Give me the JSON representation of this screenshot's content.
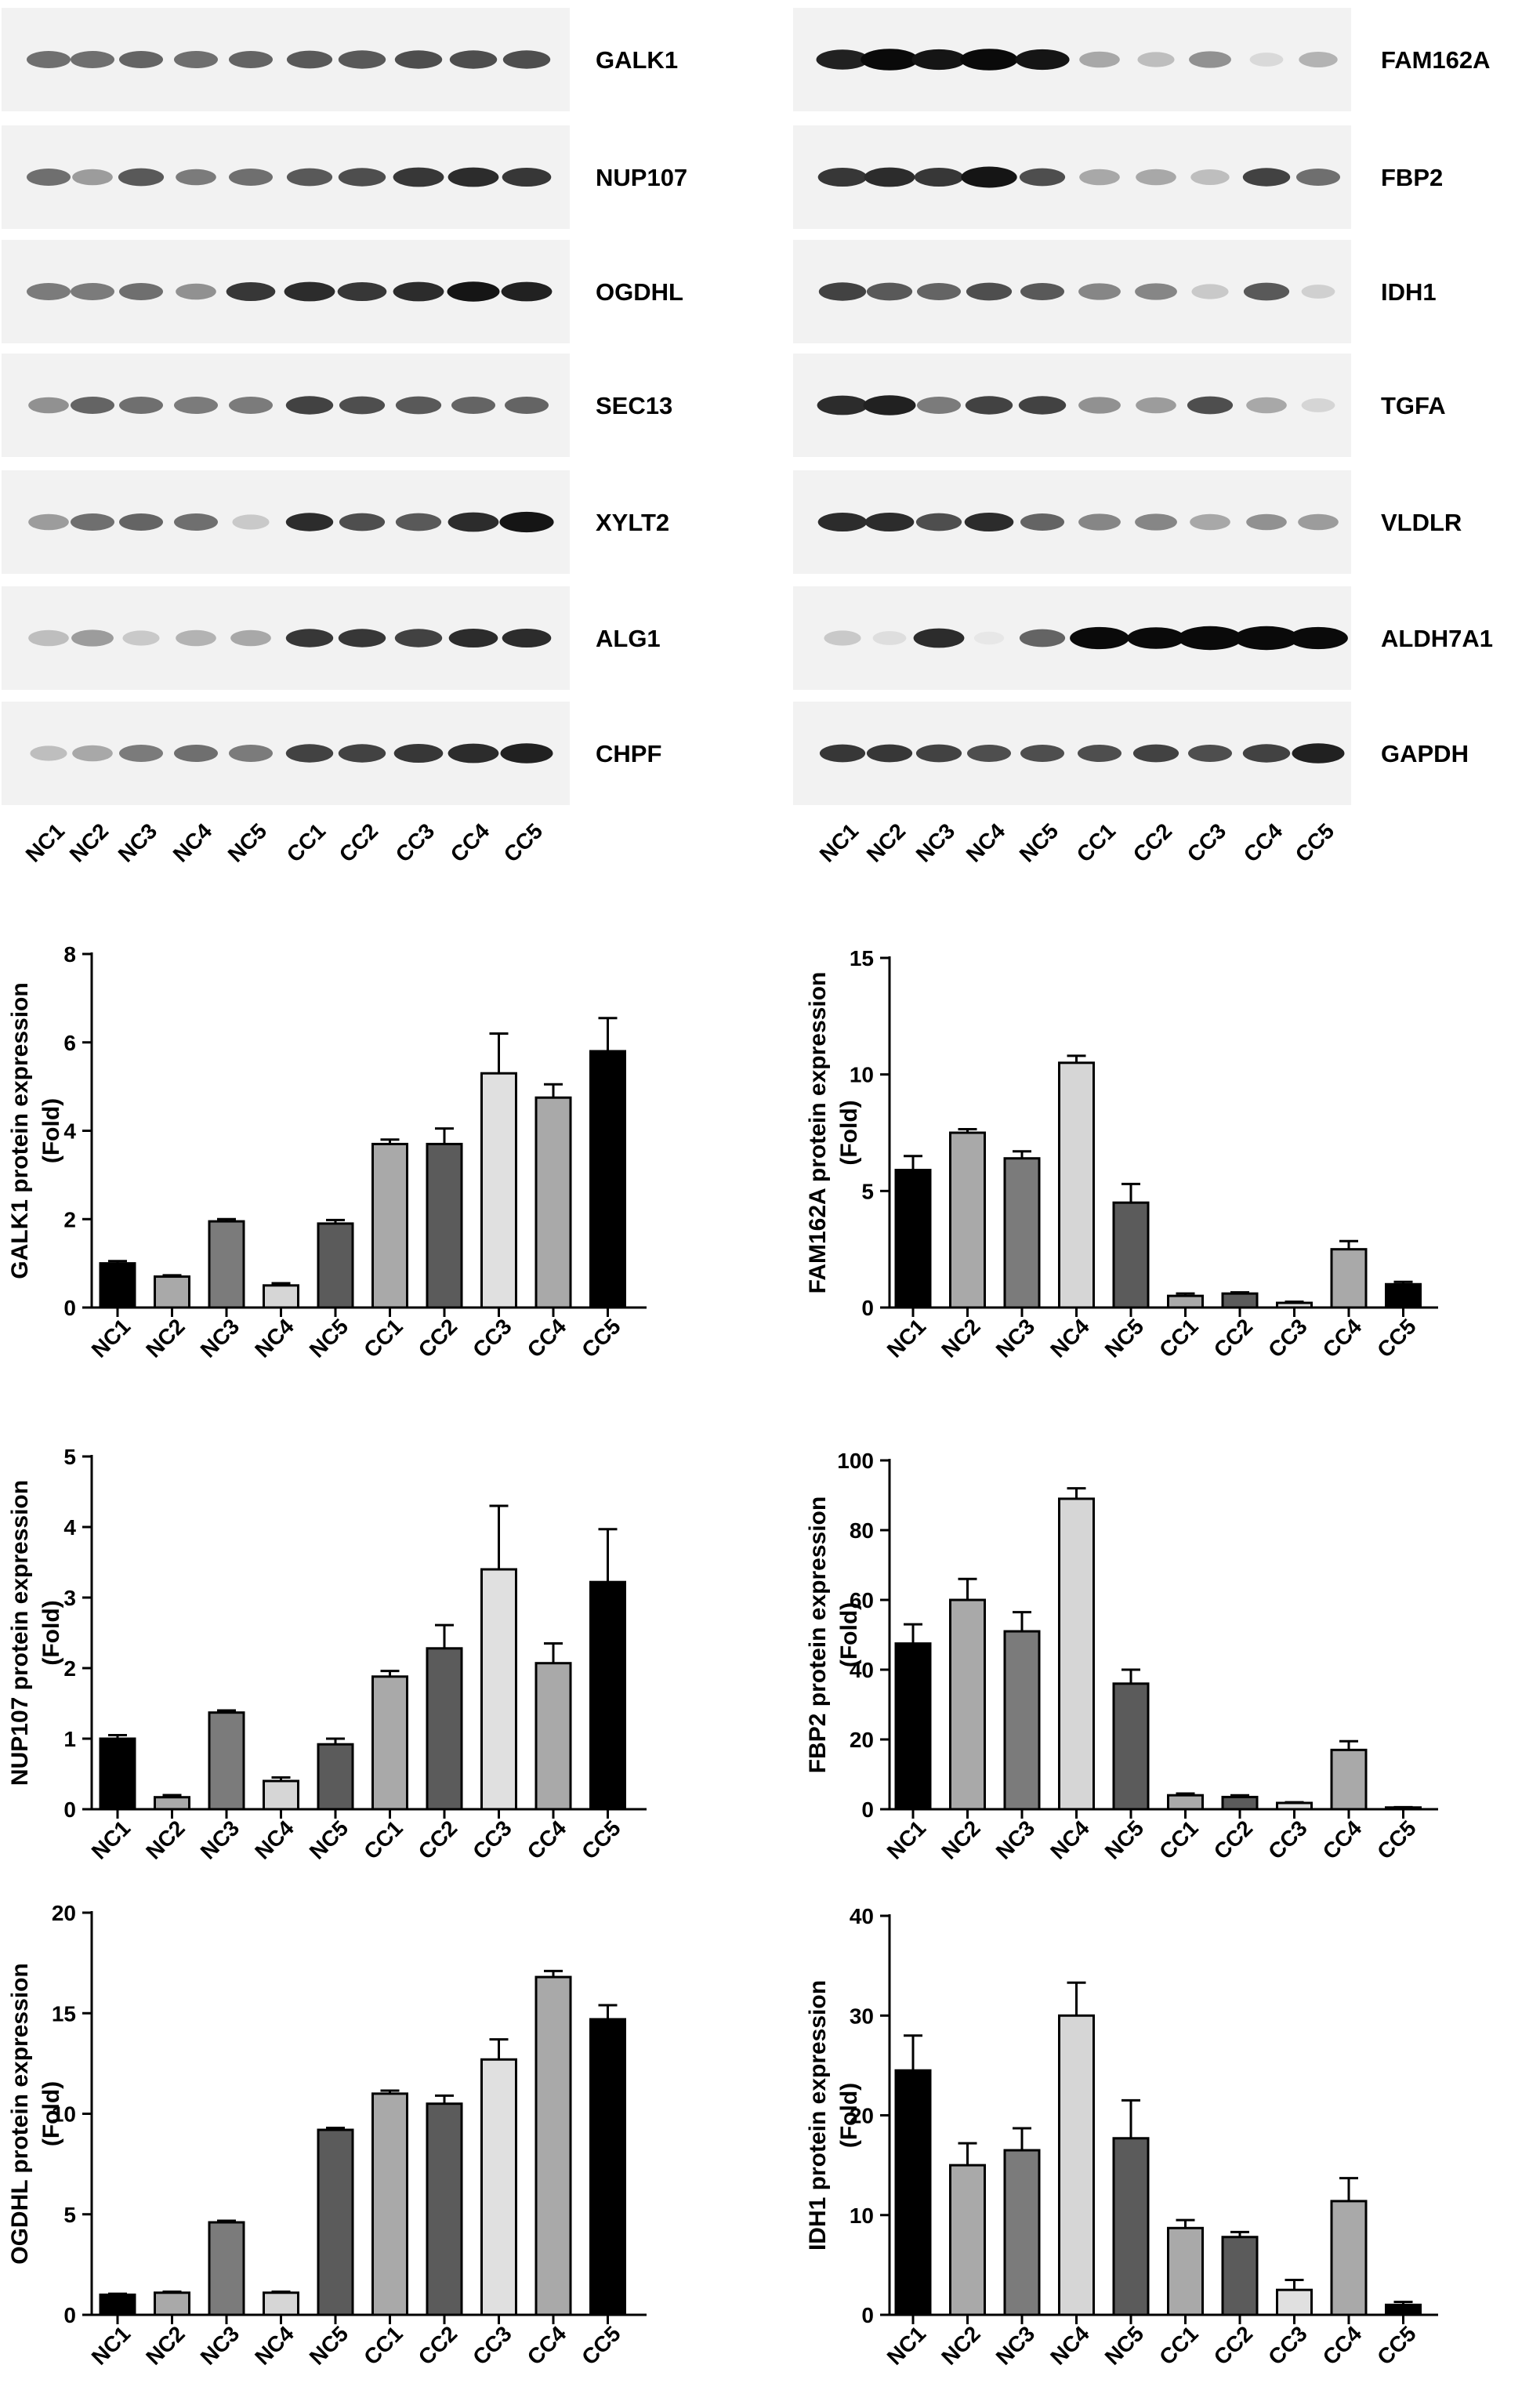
{
  "blots": {
    "lanes": [
      "NC1",
      "NC2",
      "NC3",
      "NC4",
      "NC5",
      "CC1",
      "CC2",
      "CC3",
      "CC4",
      "CC5"
    ],
    "left": [
      {
        "label": "GALK1"
      },
      {
        "label": "NUP107"
      },
      {
        "label": "OGDHL"
      },
      {
        "label": "SEC13"
      },
      {
        "label": "XYLT2"
      },
      {
        "label": "ALG1"
      },
      {
        "label": "CHPF"
      }
    ],
    "right": [
      {
        "label": "FAM162A"
      },
      {
        "label": "FBP2"
      },
      {
        "label": "IDH1"
      },
      {
        "label": "TGFA"
      },
      {
        "label": "VLDLR"
      },
      {
        "label": "ALDH7A1"
      },
      {
        "label": "GAPDH"
      }
    ]
  },
  "chart_data": [
    {
      "type": "bar",
      "ylabel": "GALK1 protein expression\n(Fold)",
      "categories": [
        "NC1",
        "NC2",
        "NC3",
        "NC4",
        "NC5",
        "CC1",
        "CC2",
        "CC3",
        "CC4",
        "CC5"
      ],
      "values": [
        1.0,
        0.7,
        1.95,
        0.5,
        1.9,
        3.7,
        3.7,
        5.3,
        4.75,
        5.8
      ],
      "errors": [
        0.05,
        0.03,
        0.05,
        0.05,
        0.08,
        0.1,
        0.35,
        0.9,
        0.3,
        0.75
      ],
      "ylim": [
        0,
        8
      ],
      "yticks": [
        0,
        2,
        4,
        6,
        8
      ]
    },
    {
      "type": "bar",
      "ylabel": "FAM162A protein expression\n(Fold)",
      "categories": [
        "NC1",
        "NC2",
        "NC3",
        "NC4",
        "NC5",
        "CC1",
        "CC2",
        "CC3",
        "CC4",
        "CC5"
      ],
      "values": [
        5.9,
        7.5,
        6.4,
        10.5,
        4.5,
        0.5,
        0.6,
        0.2,
        2.5,
        1.0
      ],
      "errors": [
        0.6,
        0.15,
        0.3,
        0.3,
        0.8,
        0.1,
        0.05,
        0.05,
        0.35,
        0.1
      ],
      "ylim": [
        0,
        15
      ],
      "yticks": [
        0,
        5,
        10,
        15
      ]
    },
    {
      "type": "bar",
      "ylabel": "NUP107 protein expression\n(Fold)",
      "categories": [
        "NC1",
        "NC2",
        "NC3",
        "NC4",
        "NC5",
        "CC1",
        "CC2",
        "CC3",
        "CC4",
        "CC5"
      ],
      "values": [
        1.0,
        0.17,
        1.37,
        0.4,
        0.92,
        1.88,
        2.28,
        3.4,
        2.07,
        3.22
      ],
      "errors": [
        0.05,
        0.03,
        0.03,
        0.05,
        0.08,
        0.08,
        0.33,
        0.9,
        0.28,
        0.75
      ],
      "ylim": [
        0,
        5
      ],
      "yticks": [
        0,
        1,
        2,
        3,
        4,
        5
      ]
    },
    {
      "type": "bar",
      "ylabel": "FBP2 protein expression\n(Fold)",
      "categories": [
        "NC1",
        "NC2",
        "NC3",
        "NC4",
        "NC5",
        "CC1",
        "CC2",
        "CC3",
        "CC4",
        "CC5"
      ],
      "values": [
        47.5,
        60,
        51,
        89,
        36,
        4,
        3.5,
        1.8,
        17,
        0.5
      ],
      "errors": [
        5.5,
        6,
        5.5,
        3,
        4,
        0.5,
        0.5,
        0.2,
        2.5,
        0.1
      ],
      "ylim": [
        0,
        100
      ],
      "yticks": [
        0,
        20,
        40,
        60,
        80,
        100
      ]
    },
    {
      "type": "bar",
      "ylabel": "OGDHL protein expression\n(Fold)",
      "categories": [
        "NC1",
        "NC2",
        "NC3",
        "NC4",
        "NC5",
        "CC1",
        "CC2",
        "CC3",
        "CC4",
        "CC5"
      ],
      "values": [
        1.0,
        1.1,
        4.6,
        1.1,
        9.2,
        11.0,
        10.5,
        12.7,
        16.8,
        14.7
      ],
      "errors": [
        0.05,
        0.05,
        0.08,
        0.05,
        0.1,
        0.15,
        0.4,
        1.0,
        0.3,
        0.7
      ],
      "ylim": [
        0,
        20
      ],
      "yticks": [
        0,
        5,
        10,
        15,
        20
      ]
    },
    {
      "type": "bar",
      "ylabel": "IDH1 protein expression\n(Fold)",
      "categories": [
        "NC1",
        "NC2",
        "NC3",
        "NC4",
        "NC5",
        "CC1",
        "CC2",
        "CC3",
        "CC4",
        "CC5"
      ],
      "values": [
        24.5,
        15.0,
        16.5,
        30.0,
        17.7,
        8.7,
        7.8,
        2.5,
        11.4,
        1.0
      ],
      "errors": [
        3.5,
        2.2,
        2.2,
        3.3,
        3.8,
        0.8,
        0.5,
        1.0,
        2.3,
        0.3
      ],
      "ylim": [
        0,
        40
      ],
      "yticks": [
        0,
        10,
        20,
        30,
        40
      ]
    }
  ]
}
